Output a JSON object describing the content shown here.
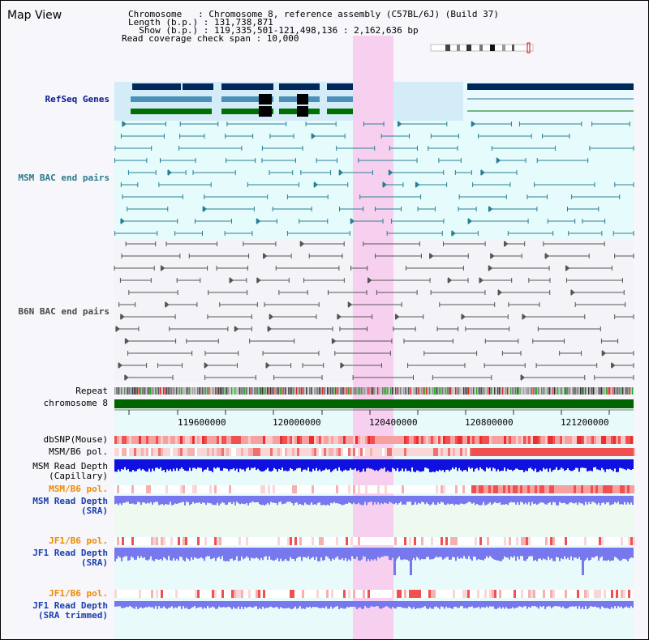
{
  "header": {
    "title": "Map View",
    "info_lines": [
      "Chromosome   : Chromosome 8, reference assembly (C57BL/6J) (Build 37)",
      "Length (b.p.) : 131,738,871",
      "  Show (b.p.) : 119,335,501-121,498,136 : 2,162,636 bp",
      "Read coverage check span : 10,000"
    ]
  },
  "tracks": {
    "refseq": "RefSeq Genes",
    "msm_bac": "MSM BAC end pairs",
    "b6n_bac": "B6N BAC end pairs",
    "repeat": "Repeat",
    "chromosome": "chromosome 8",
    "dbsnp": "dbSNP(Mouse)",
    "msm_b6_pol_1": "MSM/B6 pol.",
    "msm_depth_cap_1": "MSM Read Depth",
    "msm_depth_cap_2": "(Capillary)",
    "msm_b6_pol_2": "MSM/B6 pol.",
    "msm_depth_sra_1": "MSM Read Depth",
    "msm_depth_sra_2": "(SRA)",
    "jf1_b6_pol_1": "JF1/B6 pol.",
    "jf1_depth_sra_1": "JF1 Read Depth",
    "jf1_depth_sra_2": "(SRA)",
    "jf1_b6_pol_2": "JF1/B6 pol.",
    "jf1_depth_trim_1": "JF1 Read Depth",
    "jf1_depth_trim_2": "(SRA trimmed)"
  },
  "axis": {
    "ticks": [
      "119600000",
      "120000000",
      "120400000",
      "120800000",
      "121200000"
    ]
  },
  "colors": {
    "highlight": "#f7d0f0",
    "refseq_navy": "#00285a",
    "refseq_lightblue": "#4a90b8",
    "refseq_green": "#007000",
    "msm_bac": "#2a7f95",
    "b6n_bac": "#555555",
    "chromosome_bar": "#006400",
    "depth_blue": "#1010e0",
    "depth_lavender": "#7777ee",
    "snp_red": "#f05050"
  }
}
